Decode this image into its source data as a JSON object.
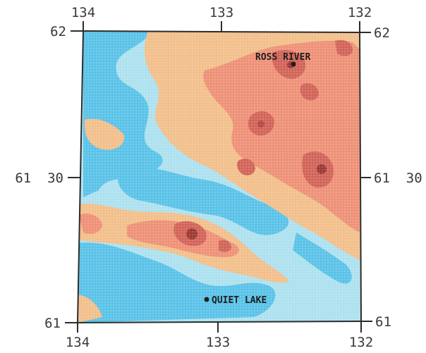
{
  "map": {
    "colors": {
      "cold": "#5cc3e8",
      "cool": "#aee1ef",
      "warm": "#f2c08c",
      "hot": "#ee9278",
      "hottest": "#d2655a",
      "peak": "#9c3a36",
      "frame": "#2c2c2c"
    },
    "longitude_labels": {
      "left": "134",
      "center": "133",
      "right": "132"
    },
    "latitude_labels": {
      "top_left": "62",
      "top_right": "62",
      "middle_left": "61  30",
      "middle_right": "61  30",
      "bottom_left": "61",
      "bottom_right": "61"
    },
    "places": {
      "ross_river": "ROSS RIVER",
      "quiet_lake": "QUIET LAKE"
    }
  }
}
